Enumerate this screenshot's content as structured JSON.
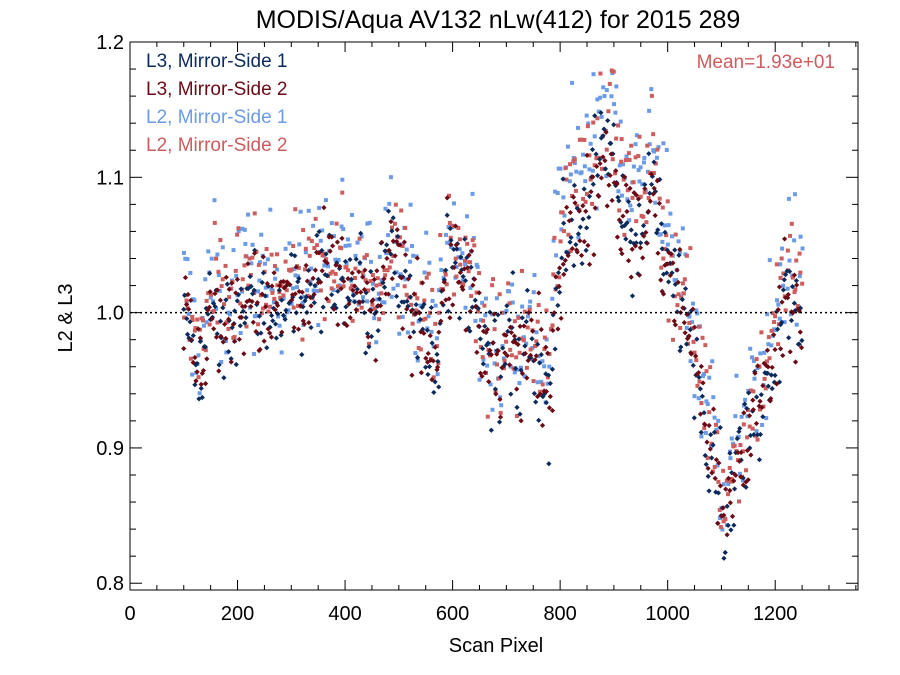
{
  "chart_data": {
    "type": "scatter",
    "title": "MODIS/Aqua AV132 nLw(412) for 2015 289",
    "xlabel": "Scan Pixel",
    "ylabel": "L2 & L3",
    "xlim": [
      0,
      1354
    ],
    "ylim": [
      0.795,
      1.2
    ],
    "xticks": [
      0,
      200,
      400,
      600,
      800,
      1000,
      1200
    ],
    "xtick_labels": [
      "0",
      "200",
      "400",
      "600",
      "800",
      "1000",
      "1200"
    ],
    "yticks": [
      0.8,
      0.9,
      1.0,
      1.1,
      1.2
    ],
    "ytick_labels": [
      "0.8",
      "0.9",
      "1.0",
      "1.1",
      "1.2"
    ],
    "reference_line": {
      "y": 1.0,
      "style": "dotted"
    },
    "legend_position": "top-left",
    "annotation": {
      "text": "Mean=1.93e+01",
      "color": "#cd5c5c",
      "position": "top-right"
    },
    "x_range_of_data": [
      100,
      1250
    ],
    "profile_breakpoints": {
      "x": [
        100,
        115,
        125,
        135,
        148,
        160,
        170,
        180,
        190,
        205,
        220,
        240,
        260,
        280,
        300,
        320,
        340,
        360,
        380,
        400,
        420,
        440,
        455,
        470,
        480,
        490,
        500,
        510,
        520,
        540,
        555,
        570,
        580,
        590,
        600,
        610,
        620,
        630,
        640,
        650,
        660,
        670,
        680,
        690,
        700,
        710,
        720,
        730,
        740,
        750,
        760,
        770,
        780,
        790,
        800,
        810,
        820,
        830,
        840,
        850,
        860,
        870,
        880,
        890,
        900,
        910,
        920,
        930,
        940,
        950,
        960,
        970,
        980,
        990,
        1000,
        1010,
        1020,
        1030,
        1040,
        1050,
        1060,
        1070,
        1080,
        1090,
        1100,
        1110,
        1120,
        1130,
        1140,
        1150,
        1160,
        1170,
        1180,
        1190,
        1200,
        1210,
        1220,
        1230,
        1240,
        1250
      ],
      "y": [
        1.0,
        0.98,
        0.955,
        0.97,
        1.0,
        1.01,
        0.985,
        0.99,
        1.0,
        1.005,
        1.01,
        1.005,
        1.0,
        1.01,
        1.015,
        1.0,
        1.02,
        1.03,
        1.025,
        1.02,
        1.015,
        1.01,
        1.0,
        1.02,
        1.05,
        1.045,
        1.025,
        1.015,
        1.01,
        1.0,
        0.985,
        0.965,
        1.01,
        1.03,
        1.035,
        1.03,
        1.025,
        1.03,
        1.01,
        0.97,
        0.96,
        0.965,
        0.97,
        0.94,
        0.985,
        0.975,
        0.955,
        0.965,
        0.985,
        0.97,
        0.96,
        0.945,
        0.935,
        1.015,
        1.035,
        1.05,
        1.06,
        1.065,
        1.07,
        1.08,
        1.09,
        1.1,
        1.12,
        1.125,
        1.11,
        1.08,
        1.07,
        1.065,
        1.06,
        1.055,
        1.07,
        1.095,
        1.07,
        1.045,
        1.03,
        1.02,
        1.01,
        1.005,
        0.99,
        0.97,
        0.95,
        0.93,
        0.905,
        0.89,
        0.86,
        0.85,
        0.87,
        0.89,
        0.9,
        0.91,
        0.92,
        0.935,
        0.95,
        0.965,
        0.98,
        1.0,
        1.015,
        1.02,
        1.015,
        0.995
      ]
    },
    "series": [
      {
        "name": "L3, Mirror-Side 1",
        "color": "#0b2a5c",
        "marker": "diamond",
        "offset": 0.0,
        "spread": 0.02
      },
      {
        "name": "L3, Mirror-Side 2",
        "color": "#6b0a14",
        "marker": "diamond",
        "offset": -0.003,
        "spread": 0.02
      },
      {
        "name": "L2, Mirror-Side 1",
        "color": "#6b9be6",
        "marker": "square",
        "offset": 0.03,
        "spread": 0.025
      },
      {
        "name": "L2, Mirror-Side 2",
        "color": "#cd5c5c",
        "marker": "square",
        "offset": 0.02,
        "spread": 0.022
      }
    ]
  }
}
